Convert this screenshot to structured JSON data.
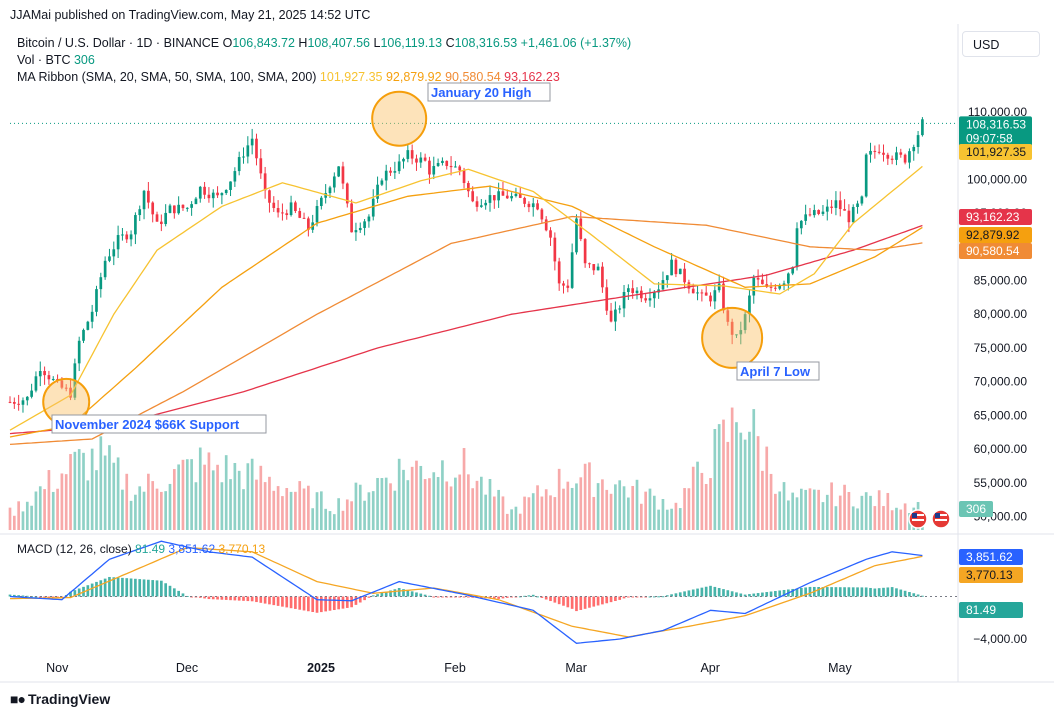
{
  "header": {
    "publisher": "JJAMai published on TradingView.com, May 21, 2025 14:52 UTC"
  },
  "symbol": {
    "name": "Bitcoin / U.S. Dollar · 1D · BINANCE",
    "o_label": "O",
    "o": "106,843.72",
    "h_label": "H",
    "h": "108,407.56",
    "l_label": "L",
    "l": "106,119.13",
    "c_label": "C",
    "c": "108,316.53",
    "change": "+1,461.06 (+1.37%)"
  },
  "volume_legend": {
    "label": "Vol · BTC",
    "value": "306"
  },
  "ma_legend": {
    "label": "MA Ribbon (SMA, 20, SMA, 50, SMA, 100, SMA, 200)",
    "v20": "101,927.35",
    "v50": "92,879.92",
    "v100": "90,580.54",
    "v200": "93,162.23"
  },
  "currency_button": "USD",
  "macd_legend": {
    "label": "MACD (12, 26, close)",
    "hist": "81.49",
    "macd": "3,851.62",
    "signal": "3,770.13"
  },
  "branding": "TradingView",
  "colors": {
    "up": "#089981",
    "down": "#f23645",
    "vol_up": "#8fd1c6",
    "vol_down": "#f7a9a9",
    "sma20": "#f7c331",
    "sma50": "#f5a00f",
    "sma100": "#f08b35",
    "sma200": "#e5344a",
    "macd": "#2962ff",
    "signal": "#f5a623",
    "annotation": "#f59e0b",
    "annotation_text": "#2962ff"
  },
  "chart_data": {
    "type": "candlestick",
    "price_axis": {
      "ticks": [
        "110,000.00",
        "105,000.00",
        "100,000.00",
        "95,000.00",
        "90,000.00",
        "85,000.00",
        "80,000.00",
        "75,000.00",
        "70,000.00",
        "65,000.00",
        "60,000.00",
        "55,000.00",
        "50,000.00"
      ],
      "tick_values": [
        110000,
        105000,
        100000,
        95000,
        90000,
        85000,
        80000,
        75000,
        70000,
        65000,
        60000,
        55000,
        50000
      ],
      "range": [
        48000,
        114000
      ]
    },
    "macd_axis": {
      "ticks": [
        "−4,000.00"
      ],
      "tick_values": [
        -4000
      ],
      "range": [
        -5500,
        5500
      ]
    },
    "time_axis": {
      "labels": [
        "Nov",
        "Dec",
        "2025",
        "Feb",
        "Mar",
        "Apr",
        "May"
      ],
      "dates": [
        "2024-11-01",
        "2024-12-01",
        "2025-01-01",
        "2025-02-01",
        "2025-03-01",
        "2025-04-01",
        "2025-05-01"
      ],
      "range": [
        "2024-10-22",
        "2025-05-29"
      ],
      "bold": "2025"
    },
    "price_tags": [
      {
        "kind": "last",
        "text": "108,316.53",
        "sub": "09:07:58",
        "value": 108316.53,
        "color": "#089981"
      },
      {
        "kind": "sma20",
        "text": "101,927.35",
        "value": 101927.35,
        "color": "#f7c331"
      },
      {
        "kind": "sma200",
        "text": "93,162.23",
        "value": 93162.23,
        "color": "#e5344a"
      },
      {
        "kind": "sma50",
        "text": "92,879.92",
        "value": 92879.92,
        "color": "#f5a00f"
      },
      {
        "kind": "sma100",
        "text": "90,580.54",
        "value": 90580.54,
        "color": "#f08b35"
      },
      {
        "kind": "volume",
        "text": "306",
        "color": "#6bc5b4"
      }
    ],
    "macd_tags": [
      {
        "text": "3,851.62",
        "value": 3851.62,
        "color": "#2962ff"
      },
      {
        "text": "3,770.13",
        "value": 3770.13,
        "color": "#f5a623"
      },
      {
        "text": "81.49",
        "value": 81.49,
        "color": "#26a69a"
      }
    ],
    "annotations": [
      {
        "text": "January 20 High",
        "date": "2025-01-20",
        "value": 109000
      },
      {
        "text": "April 7 Low",
        "date": "2025-04-07",
        "value": 76500
      },
      {
        "text": "November 2024 $66K Support",
        "date": "2024-11-04",
        "value": 67000
      }
    ],
    "close_anchors": [
      [
        "2024-10-22",
        67000
      ],
      [
        "2024-10-26",
        67500
      ],
      [
        "2024-10-29",
        72300
      ],
      [
        "2024-11-02",
        69400
      ],
      [
        "2024-11-05",
        68300
      ],
      [
        "2024-11-07",
        75900
      ],
      [
        "2024-11-10",
        80500
      ],
      [
        "2024-11-13",
        88000
      ],
      [
        "2024-11-16",
        91000
      ],
      [
        "2024-11-19",
        92300
      ],
      [
        "2024-11-22",
        98400
      ],
      [
        "2024-11-25",
        93100
      ],
      [
        "2024-11-28",
        95600
      ],
      [
        "2024-12-02",
        95800
      ],
      [
        "2024-12-05",
        98700
      ],
      [
        "2024-12-09",
        97300
      ],
      [
        "2024-12-12",
        100000
      ],
      [
        "2024-12-15",
        104000
      ],
      [
        "2024-12-17",
        106100
      ],
      [
        "2024-12-20",
        97600
      ],
      [
        "2024-12-23",
        94700
      ],
      [
        "2024-12-26",
        95800
      ],
      [
        "2024-12-30",
        92700
      ],
      [
        "2025-01-03",
        98100
      ],
      [
        "2025-01-06",
        102200
      ],
      [
        "2025-01-09",
        92600
      ],
      [
        "2025-01-13",
        94500
      ],
      [
        "2025-01-16",
        100500
      ],
      [
        "2025-01-20",
        102200
      ],
      [
        "2025-01-22",
        103600
      ],
      [
        "2025-01-26",
        102600
      ],
      [
        "2025-01-27",
        101300
      ],
      [
        "2025-01-31",
        102400
      ],
      [
        "2025-02-03",
        101400
      ],
      [
        "2025-02-06",
        96500
      ],
      [
        "2025-02-10",
        97400
      ],
      [
        "2025-02-14",
        97500
      ],
      [
        "2025-02-19",
        96600
      ],
      [
        "2025-02-21",
        96200
      ],
      [
        "2025-02-24",
        91500
      ],
      [
        "2025-02-26",
        84300
      ],
      [
        "2025-02-28",
        84300
      ],
      [
        "2025-03-02",
        94200
      ],
      [
        "2025-03-04",
        87200
      ],
      [
        "2025-03-07",
        86700
      ],
      [
        "2025-03-10",
        78600
      ],
      [
        "2025-03-14",
        84000
      ],
      [
        "2025-03-18",
        82700
      ],
      [
        "2025-03-21",
        84100
      ],
      [
        "2025-03-24",
        87500
      ],
      [
        "2025-03-28",
        84400
      ],
      [
        "2025-03-31",
        82500
      ],
      [
        "2025-04-02",
        82500
      ],
      [
        "2025-04-04",
        83800
      ],
      [
        "2025-04-06",
        78400
      ],
      [
        "2025-04-08",
        76300
      ],
      [
        "2025-04-10",
        79600
      ],
      [
        "2025-04-12",
        85300
      ],
      [
        "2025-04-15",
        83600
      ],
      [
        "2025-04-19",
        85100
      ],
      [
        "2025-04-21",
        87500
      ],
      [
        "2025-04-22",
        93400
      ],
      [
        "2025-04-25",
        94700
      ],
      [
        "2025-04-28",
        95000
      ],
      [
        "2025-05-01",
        96500
      ],
      [
        "2025-05-04",
        94300
      ],
      [
        "2025-05-07",
        96800
      ],
      [
        "2025-05-08",
        103200
      ],
      [
        "2025-05-11",
        104600
      ],
      [
        "2025-05-14",
        103500
      ],
      [
        "2025-05-17",
        103100
      ],
      [
        "2025-05-19",
        105600
      ],
      [
        "2025-05-20",
        106800
      ],
      [
        "2025-05-21",
        108316.53
      ]
    ],
    "sma_anchors": {
      "sma20": [
        [
          "2024-10-22",
          62800
        ],
        [
          "2024-11-05",
          68000
        ],
        [
          "2024-11-15",
          80000
        ],
        [
          "2024-11-25",
          89500
        ],
        [
          "2024-12-10",
          96000
        ],
        [
          "2024-12-24",
          99500
        ],
        [
          "2025-01-10",
          96500
        ],
        [
          "2025-01-25",
          99800
        ],
        [
          "2025-02-05",
          101500
        ],
        [
          "2025-02-20",
          98200
        ],
        [
          "2025-03-05",
          92000
        ],
        [
          "2025-03-20",
          84500
        ],
        [
          "2025-04-05",
          84200
        ],
        [
          "2025-04-18",
          83000
        ],
        [
          "2025-04-26",
          86000
        ],
        [
          "2025-05-05",
          93500
        ],
        [
          "2025-05-21",
          101927.35
        ]
      ],
      "sma50": [
        [
          "2024-10-22",
          61800
        ],
        [
          "2024-11-05",
          63500
        ],
        [
          "2024-11-20",
          72000
        ],
        [
          "2024-12-10",
          84000
        ],
        [
          "2025-01-01",
          93500
        ],
        [
          "2025-01-22",
          97500
        ],
        [
          "2025-02-10",
          99000
        ],
        [
          "2025-03-01",
          96000
        ],
        [
          "2025-03-20",
          90000
        ],
        [
          "2025-04-10",
          84000
        ],
        [
          "2025-04-25",
          84500
        ],
        [
          "2025-05-10",
          88500
        ],
        [
          "2025-05-21",
          92879.92
        ]
      ],
      "sma100": [
        [
          "2024-10-22",
          60700
        ],
        [
          "2024-11-10",
          61500
        ],
        [
          "2024-12-01",
          68500
        ],
        [
          "2025-01-01",
          80000
        ],
        [
          "2025-02-01",
          90500
        ],
        [
          "2025-03-01",
          94500
        ],
        [
          "2025-04-01",
          93200
        ],
        [
          "2025-04-25",
          90000
        ],
        [
          "2025-05-10",
          89500
        ],
        [
          "2025-05-21",
          90580.54
        ]
      ],
      "sma200": [
        [
          "2024-10-22",
          62300
        ],
        [
          "2024-11-15",
          63500
        ],
        [
          "2024-12-15",
          68500
        ],
        [
          "2025-01-15",
          75000
        ],
        [
          "2025-02-15",
          80000
        ],
        [
          "2025-03-15",
          82800
        ],
        [
          "2025-04-15",
          85800
        ],
        [
          "2025-05-05",
          89500
        ],
        [
          "2025-05-21",
          93162.23
        ]
      ]
    },
    "macd_anchors": {
      "macd": [
        [
          "2024-10-22",
          0
        ],
        [
          "2024-11-03",
          -300
        ],
        [
          "2024-11-14",
          3500
        ],
        [
          "2024-11-26",
          5200
        ],
        [
          "2024-12-07",
          4200
        ],
        [
          "2024-12-17",
          3700
        ],
        [
          "2025-01-01",
          -300
        ],
        [
          "2025-01-09",
          -400
        ],
        [
          "2025-01-20",
          1400
        ],
        [
          "2025-02-04",
          200
        ],
        [
          "2025-02-20",
          -1300
        ],
        [
          "2025-03-02",
          -4400
        ],
        [
          "2025-03-12",
          -4000
        ],
        [
          "2025-03-22",
          -3200
        ],
        [
          "2025-04-02",
          -1300
        ],
        [
          "2025-04-10",
          -1600
        ],
        [
          "2025-04-25",
          1300
        ],
        [
          "2025-05-08",
          3500
        ],
        [
          "2025-05-14",
          4200
        ],
        [
          "2025-05-21",
          3851.62
        ]
      ],
      "signal": [
        [
          "2024-10-22",
          -200
        ],
        [
          "2024-11-05",
          -100
        ],
        [
          "2024-11-20",
          2500
        ],
        [
          "2024-12-02",
          4600
        ],
        [
          "2024-12-17",
          4200
        ],
        [
          "2025-01-01",
          1400
        ],
        [
          "2025-01-14",
          300
        ],
        [
          "2025-01-28",
          800
        ],
        [
          "2025-02-12",
          -300
        ],
        [
          "2025-03-01",
          -2800
        ],
        [
          "2025-03-14",
          -3800
        ],
        [
          "2025-03-28",
          -2800
        ],
        [
          "2025-04-10",
          -1800
        ],
        [
          "2025-04-25",
          300
        ],
        [
          "2025-05-10",
          2900
        ],
        [
          "2025-05-21",
          3770.13
        ]
      ]
    },
    "volume_anchors": [
      [
        "2024-10-22",
        0.14
      ],
      [
        "2024-11-06",
        0.55
      ],
      [
        "2024-11-12",
        0.6
      ],
      [
        "2024-11-20",
        0.33
      ],
      [
        "2024-12-05",
        0.55
      ],
      [
        "2024-12-18",
        0.45
      ],
      [
        "2025-01-05",
        0.2
      ],
      [
        "2025-01-20",
        0.5
      ],
      [
        "2025-02-03",
        0.55
      ],
      [
        "2025-02-15",
        0.15
      ],
      [
        "2025-02-28",
        0.45
      ],
      [
        "2025-03-10",
        0.4
      ],
      [
        "2025-03-25",
        0.2
      ],
      [
        "2025-04-07",
        0.85
      ],
      [
        "2025-04-09",
        1.0
      ],
      [
        "2025-04-20",
        0.25
      ],
      [
        "2025-05-01",
        0.3
      ],
      [
        "2025-05-21",
        0.2
      ]
    ]
  }
}
